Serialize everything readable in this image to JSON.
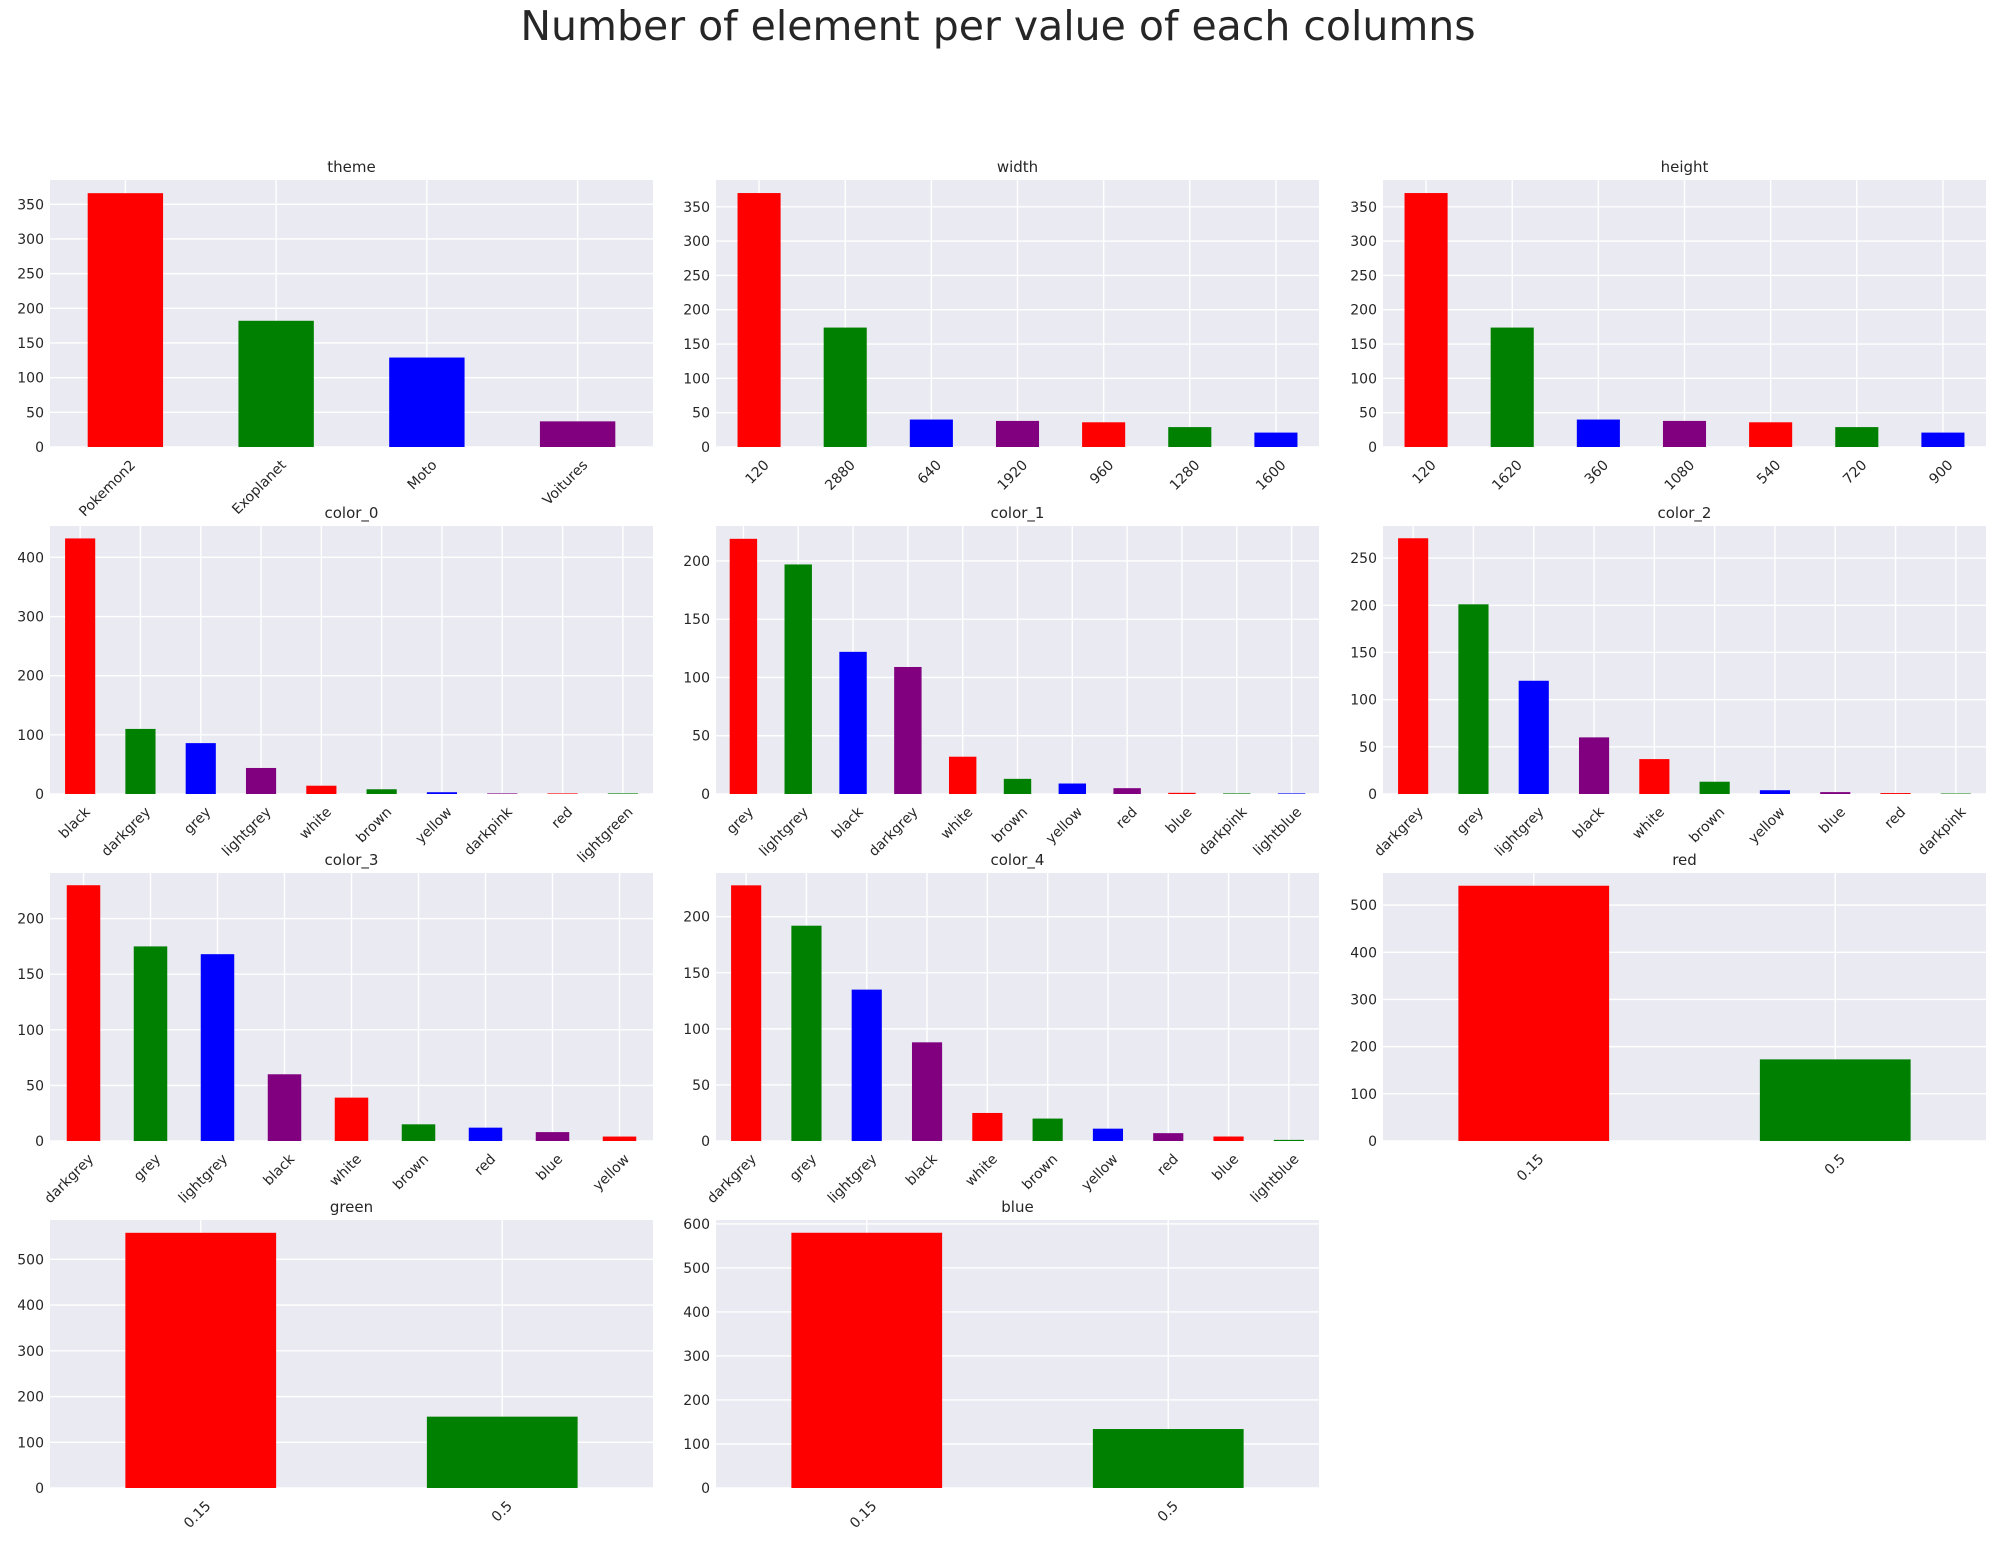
{
  "figure": {
    "title": "Number of element per value of each columns"
  },
  "colors": {
    "palette": [
      "#ff0000",
      "#008000",
      "#0000ff",
      "#800080"
    ],
    "background": "#eaeaf2",
    "grid": "#ffffff"
  },
  "chart_data": [
    {
      "type": "bar",
      "title": "theme",
      "categories": [
        "Pokemon2",
        "Exoplanet",
        "Moto",
        "Voitures"
      ],
      "values": [
        366,
        182,
        129,
        37
      ],
      "ylim": [
        0,
        385
      ],
      "yticks": [
        0,
        50,
        100,
        150,
        200,
        250,
        300,
        350
      ],
      "grid": true
    },
    {
      "type": "bar",
      "title": "width",
      "categories": [
        "120",
        "2880",
        "640",
        "1920",
        "960",
        "1280",
        "1600"
      ],
      "values": [
        370,
        174,
        40,
        38,
        36,
        29,
        21
      ],
      "ylim": [
        0,
        389
      ],
      "yticks": [
        0,
        50,
        100,
        150,
        200,
        250,
        300,
        350
      ],
      "grid": true
    },
    {
      "type": "bar",
      "title": "height",
      "categories": [
        "120",
        "1620",
        "360",
        "1080",
        "540",
        "720",
        "900"
      ],
      "values": [
        370,
        174,
        40,
        38,
        36,
        29,
        21
      ],
      "ylim": [
        0,
        389
      ],
      "yticks": [
        0,
        50,
        100,
        150,
        200,
        250,
        300,
        350
      ],
      "grid": true
    },
    {
      "type": "bar",
      "title": "color_0",
      "categories": [
        "black",
        "darkgrey",
        "grey",
        "lightgrey",
        "white",
        "brown",
        "yellow",
        "darkpink",
        "red",
        "lightgreen"
      ],
      "values": [
        432,
        110,
        86,
        44,
        14,
        8,
        3,
        1,
        1,
        1
      ],
      "ylim": [
        0,
        453
      ],
      "yticks": [
        0,
        100,
        200,
        300,
        400
      ],
      "grid": true
    },
    {
      "type": "bar",
      "title": "color_1",
      "categories": [
        "grey",
        "lightgrey",
        "black",
        "darkgrey",
        "white",
        "brown",
        "yellow",
        "red",
        "blue",
        "darkpink",
        "lightblue"
      ],
      "values": [
        219,
        197,
        122,
        109,
        32,
        13,
        9,
        5,
        1,
        0.5,
        0.5
      ],
      "ylim": [
        0,
        230
      ],
      "yticks": [
        0,
        50,
        100,
        150,
        200
      ],
      "grid": true
    },
    {
      "type": "bar",
      "title": "color_2",
      "categories": [
        "darkgrey",
        "grey",
        "lightgrey",
        "black",
        "white",
        "brown",
        "yellow",
        "blue",
        "red",
        "darkpink"
      ],
      "values": [
        271,
        201,
        120,
        60,
        37,
        13,
        4,
        2,
        1,
        0.5
      ],
      "ylim": [
        0,
        284
      ],
      "yticks": [
        0,
        50,
        100,
        150,
        200,
        250
      ],
      "grid": true
    },
    {
      "type": "bar",
      "title": "color_3",
      "categories": [
        "darkgrey",
        "grey",
        "lightgrey",
        "black",
        "white",
        "brown",
        "red",
        "blue",
        "yellow"
      ],
      "values": [
        230,
        175,
        168,
        60,
        39,
        15,
        12,
        8,
        4
      ],
      "ylim": [
        0,
        241
      ],
      "yticks": [
        0,
        50,
        100,
        150,
        200
      ],
      "grid": true
    },
    {
      "type": "bar",
      "title": "color_4",
      "categories": [
        "darkgrey",
        "grey",
        "lightgrey",
        "black",
        "white",
        "brown",
        "yellow",
        "red",
        "blue",
        "lightblue"
      ],
      "values": [
        228,
        192,
        135,
        88,
        25,
        20,
        11,
        7,
        4,
        1
      ],
      "ylim": [
        0,
        239
      ],
      "yticks": [
        0,
        50,
        100,
        150,
        200
      ],
      "grid": true
    },
    {
      "type": "bar",
      "title": "red",
      "categories": [
        "0.15",
        "0.5"
      ],
      "values": [
        541,
        173
      ],
      "ylim": [
        0,
        568
      ],
      "yticks": [
        0,
        100,
        200,
        300,
        400,
        500
      ],
      "grid": true
    },
    {
      "type": "bar",
      "title": "green",
      "categories": [
        "0.15",
        "0.5"
      ],
      "values": [
        558,
        156
      ],
      "ylim": [
        0,
        586
      ],
      "yticks": [
        0,
        100,
        200,
        300,
        400,
        500
      ],
      "grid": true
    },
    {
      "type": "bar",
      "title": "blue",
      "categories": [
        "0.15",
        "0.5"
      ],
      "values": [
        580,
        134
      ],
      "ylim": [
        0,
        609
      ],
      "yticks": [
        0,
        100,
        200,
        300,
        400,
        500,
        600
      ],
      "grid": true
    }
  ]
}
